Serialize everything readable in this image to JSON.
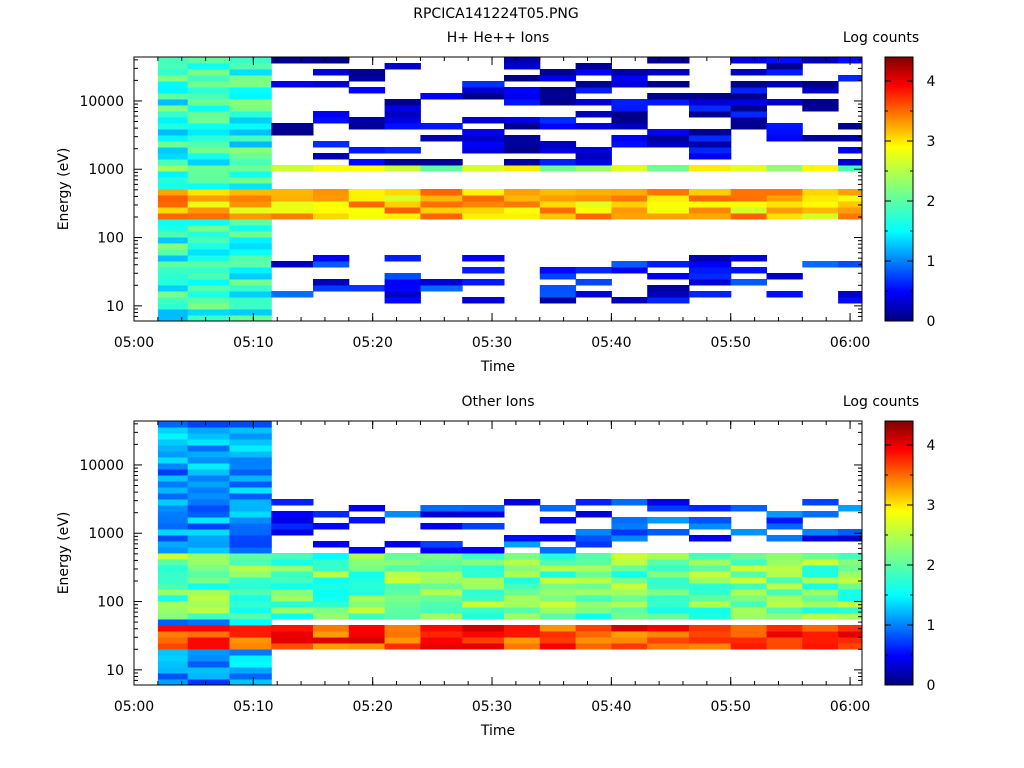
{
  "figure_title": "RPCICA141224T05.PNG",
  "colors": {
    "colormap": "jet",
    "background": "#ffffff",
    "axis": "#000000"
  },
  "chart_data": [
    {
      "type": "heatmap",
      "title": "H+ He++ Ions",
      "xlabel": "Time",
      "ylabel": "Energy (eV)",
      "y_scale": "log",
      "xlim": [
        "05:00",
        "06:01"
      ],
      "ylim": [
        6,
        44000
      ],
      "x_ticks": [
        "05:00",
        "05:10",
        "05:20",
        "05:30",
        "05:40",
        "05:50",
        "06:00"
      ],
      "y_ticks": [
        10,
        100,
        1000,
        10000
      ],
      "y_tick_labels": [
        "10",
        "100",
        "1000",
        "10000"
      ],
      "colorbar": {
        "label": "Log counts",
        "range": [
          0,
          4.4
        ],
        "ticks": [
          0,
          1,
          2,
          3,
          4
        ]
      },
      "time_bins": [
        "05:02",
        "05:06",
        "05:09",
        "05:13",
        "05:16",
        "05:19",
        "05:22",
        "05:25",
        "05:29",
        "05:32",
        "05:35",
        "05:38",
        "05:41",
        "05:44",
        "05:48",
        "05:51",
        "05:54",
        "05:57",
        "06:00"
      ],
      "features": [
        {
          "band": "broad background",
          "time_range": [
            "05:02",
            "05:09"
          ],
          "energy_range": [
            6,
            44000
          ],
          "log_counts": 1.8
        },
        {
          "band": "main ring current peak",
          "time_range": [
            "05:02",
            "06:01"
          ],
          "energy_range": [
            200,
            500
          ],
          "log_counts": 3.0
        },
        {
          "band": "secondary band near 1 keV",
          "time_range": [
            "05:02",
            "06:01"
          ],
          "energy_range": [
            900,
            1100
          ],
          "log_counts": 2.4
        },
        {
          "band": "sparse high-energy counts",
          "time_range": [
            "05:09",
            "06:01"
          ],
          "energy_range": [
            1100,
            40000
          ],
          "log_counts": 0.3
        },
        {
          "band": "low-energy counts",
          "time_range": [
            "05:09",
            "06:01"
          ],
          "energy_range": [
            12,
            60
          ],
          "log_counts": 0.6
        }
      ]
    },
    {
      "type": "heatmap",
      "title": "Other Ions",
      "xlabel": "Time",
      "ylabel": "Energy (eV)",
      "y_scale": "log",
      "xlim": [
        "05:00",
        "06:01"
      ],
      "ylim": [
        6,
        44000
      ],
      "x_ticks": [
        "05:00",
        "05:10",
        "05:20",
        "05:30",
        "05:40",
        "05:50",
        "06:00"
      ],
      "y_ticks": [
        10,
        100,
        1000,
        10000
      ],
      "y_tick_labels": [
        "10",
        "100",
        "1000",
        "10000"
      ],
      "colorbar": {
        "label": "Log counts",
        "range": [
          0,
          4.4
        ],
        "ticks": [
          0,
          1,
          2,
          3,
          4
        ]
      },
      "time_bins": [
        "05:02",
        "05:06",
        "05:09",
        "05:13",
        "05:16",
        "05:19",
        "05:22",
        "05:25",
        "05:29",
        "05:32",
        "05:35",
        "05:38",
        "05:41",
        "05:44",
        "05:48",
        "05:51",
        "05:54",
        "05:57",
        "06:00"
      ],
      "features": [
        {
          "band": "broad background",
          "time_range": [
            "05:02",
            "05:09"
          ],
          "energy_range": [
            6,
            44000
          ],
          "log_counts": 1.2
        },
        {
          "band": "low-energy peak",
          "time_range": [
            "05:02",
            "06:01"
          ],
          "energy_range": [
            20,
            45
          ],
          "log_counts": 3.6
        },
        {
          "band": "mid-energy population",
          "time_range": [
            "05:02",
            "06:01"
          ],
          "energy_range": [
            60,
            500
          ],
          "log_counts": 2.1
        },
        {
          "band": "upper edge",
          "time_range": [
            "05:09",
            "06:01"
          ],
          "energy_range": [
            500,
            3000
          ],
          "log_counts": 0.8
        }
      ]
    }
  ]
}
